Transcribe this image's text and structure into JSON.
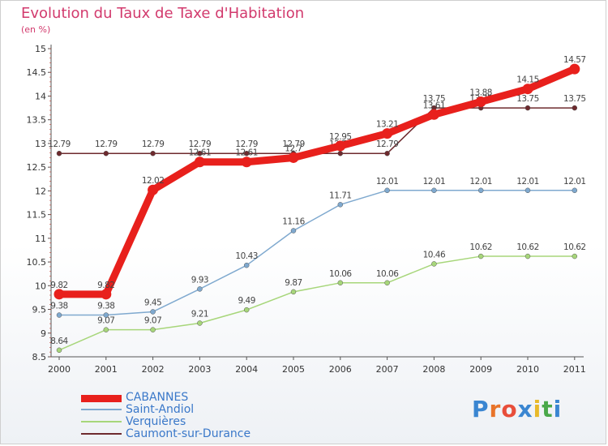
{
  "title": "Evolution du Taux de Taxe d'Habitation",
  "subtitle": "(en %)",
  "logo": {
    "text": "Proxiti",
    "letter_colors": [
      "#3a86d1",
      "#e8742a",
      "#e84e3a",
      "#3a86d1",
      "#e8b92a",
      "#4aa84a",
      "#3a86d1"
    ]
  },
  "chart_data": {
    "type": "line",
    "x": [
      "2000",
      "2001",
      "2002",
      "2003",
      "2004",
      "2005",
      "2006",
      "2007",
      "2008",
      "2009",
      "2010",
      "2011"
    ],
    "ylim": [
      8.5,
      15
    ],
    "yticks": [
      "8.5",
      "9",
      "9.5",
      "10",
      "10.5",
      "11",
      "11.5",
      "12",
      "12.5",
      "13",
      "13.5",
      "14",
      "14.5",
      "15"
    ],
    "grid": false,
    "legend": "bottom-left",
    "series": [
      {
        "name": "Caumont-sur-Durance",
        "color": "#6e2a2e",
        "values": [
          12.79,
          12.79,
          12.79,
          12.79,
          12.79,
          12.79,
          12.79,
          12.79,
          13.75,
          13.75,
          13.75,
          13.75
        ],
        "labels": [
          "12.79",
          "12.79",
          "12.79",
          "12.79",
          "12.79",
          "12.79",
          "12.79",
          "12.79",
          "13.75",
          "13.75",
          "13.75",
          "13.75"
        ]
      },
      {
        "name": "Verquières",
        "color": "#a7d67a",
        "values": [
          8.64,
          9.07,
          9.07,
          9.21,
          9.49,
          9.87,
          10.06,
          10.06,
          10.46,
          10.62,
          10.62,
          10.62
        ],
        "labels": [
          "8.64",
          "9.07",
          "9.07",
          "9.21",
          "9.49",
          "9.87",
          "10.06",
          "10.06",
          "10.46",
          "10.62",
          "10.62",
          "10.62"
        ]
      },
      {
        "name": "Saint-Andiol",
        "color": "#7fa9cf",
        "values": [
          9.38,
          9.38,
          9.45,
          9.93,
          10.43,
          11.16,
          11.71,
          12.01,
          12.01,
          12.01,
          12.01,
          12.01
        ],
        "labels": [
          "9.38",
          "9.38",
          "9.45",
          "9.93",
          "10.43",
          "11.16",
          "11.71",
          "12.01",
          "12.01",
          "12.01",
          "12.01",
          "12.01"
        ]
      },
      {
        "name": "CABANNES",
        "color": "#e8201c",
        "values": [
          9.82,
          9.82,
          12.02,
          12.61,
          12.61,
          12.7,
          12.95,
          13.21,
          13.61,
          13.88,
          14.15,
          14.57
        ],
        "labels": [
          "9.82",
          "9.82",
          "12.02",
          "12.61",
          "12.61",
          "12.7",
          "12.95",
          "13.21",
          "13.61",
          "13.88",
          "14.15",
          "14.57"
        ]
      }
    ],
    "legend_order": [
      "CABANNES",
      "Saint-Andiol",
      "Verquières",
      "Caumont-sur-Durance"
    ]
  }
}
